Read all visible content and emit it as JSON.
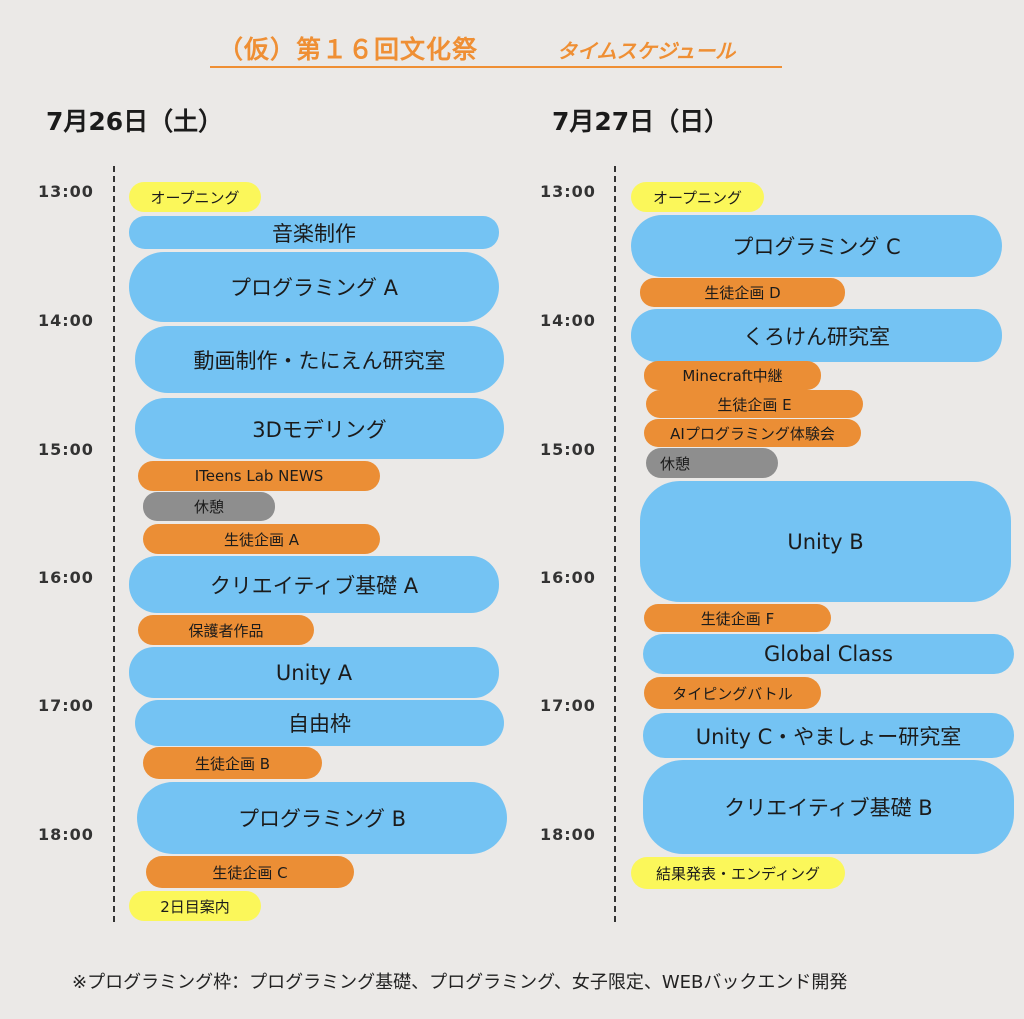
{
  "title": {
    "main": "（仮）第１６回文化祭",
    "sub": "タイムスケジュール"
  },
  "days": [
    {
      "label": "7月26日（土）",
      "times": [
        "13:00",
        "14:00",
        "15:00",
        "16:00",
        "17:00",
        "18:00"
      ],
      "events": [
        {
          "label": "オープニング",
          "color": "yellow"
        },
        {
          "label": "音楽制作",
          "color": "blue"
        },
        {
          "label": "プログラミング A",
          "color": "blue"
        },
        {
          "label": "動画制作・たにえん研究室",
          "color": "blue"
        },
        {
          "label": "3Dモデリング",
          "color": "blue"
        },
        {
          "label": "ITeens Lab NEWS",
          "color": "orange"
        },
        {
          "label": "休憩",
          "color": "gray"
        },
        {
          "label": "生徒企画 A",
          "color": "orange"
        },
        {
          "label": "クリエイティブ基礎 A",
          "color": "blue"
        },
        {
          "label": "保護者作品",
          "color": "orange"
        },
        {
          "label": "Unity A",
          "color": "blue"
        },
        {
          "label": "自由枠",
          "color": "blue"
        },
        {
          "label": "生徒企画 B",
          "color": "orange"
        },
        {
          "label": "プログラミング B",
          "color": "blue"
        },
        {
          "label": "生徒企画 C",
          "color": "orange"
        },
        {
          "label": "2日目案内",
          "color": "yellow"
        }
      ]
    },
    {
      "label": "7月27日（日）",
      "times": [
        "13:00",
        "14:00",
        "15:00",
        "16:00",
        "17:00",
        "18:00"
      ],
      "events": [
        {
          "label": "オープニング",
          "color": "yellow"
        },
        {
          "label": "プログラミング C",
          "color": "blue"
        },
        {
          "label": "生徒企画 D",
          "color": "orange"
        },
        {
          "label": "くろけん研究室",
          "color": "blue"
        },
        {
          "label": "Minecraft中継",
          "color": "orange"
        },
        {
          "label": "生徒企画 E",
          "color": "orange"
        },
        {
          "label": "AIプログラミング体験会",
          "color": "orange"
        },
        {
          "label": "休憩",
          "color": "gray"
        },
        {
          "label": "Unity B",
          "color": "blue"
        },
        {
          "label": "生徒企画 F",
          "color": "orange"
        },
        {
          "label": "Global Class",
          "color": "blue"
        },
        {
          "label": "タイピングバトル",
          "color": "orange"
        },
        {
          "label": "Unity C・やましょー研究室",
          "color": "blue"
        },
        {
          "label": "クリエイティブ基礎 B",
          "color": "blue"
        },
        {
          "label": "結果発表・エンディング",
          "color": "yellow"
        }
      ]
    }
  ],
  "footnote": "※プログラミング枠：プログラミング基礎、プログラミング、女子限定、WEBバックエンド開発"
}
